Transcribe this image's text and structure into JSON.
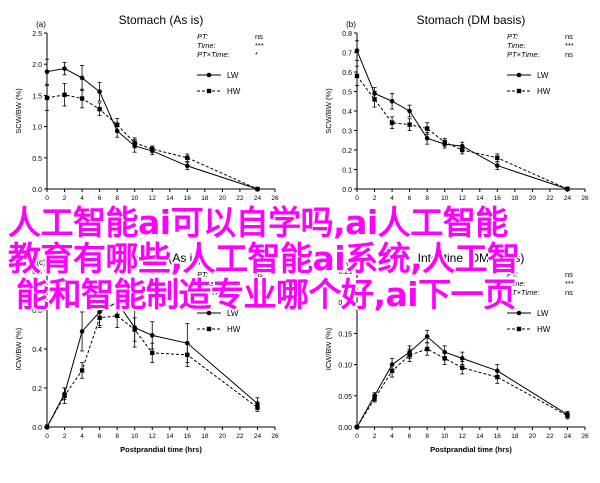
{
  "overlay": {
    "lines": [
      "人工智能ai可以自学吗,ai人工智能",
      "教育有哪些,人工智能ai系统,人工智",
      "能和智能制造专业哪个好,ai下一页"
    ],
    "color": "#ff00ff"
  },
  "chart_data": [
    {
      "type": "line",
      "title": "Stomach (As is)",
      "panel_label": "(a)",
      "xlabel": "",
      "ylabel": "SCW/BW (%)",
      "xlim": [
        0,
        26
      ],
      "ylim": [
        0,
        2.5
      ],
      "yticks": [
        "0.0",
        "0.5",
        "1.0",
        "1.5",
        "2.0",
        "2.5"
      ],
      "xticks": [
        "0",
        "2",
        "4",
        "6",
        "8",
        "10",
        "12",
        "14",
        "16",
        "18",
        "20",
        "22",
        "24",
        "26"
      ],
      "stats": [
        {
          "label": "PT:",
          "value": "ns"
        },
        {
          "label": "Time:",
          "value": "***"
        },
        {
          "label": "PT×Time:",
          "value": "*"
        }
      ],
      "series": [
        {
          "name": "LW",
          "x": [
            0,
            2,
            4,
            6,
            8,
            10,
            12,
            16,
            24
          ],
          "y": [
            1.88,
            1.93,
            1.78,
            1.56,
            0.93,
            0.69,
            0.61,
            0.37,
            0.0
          ],
          "err": [
            0.2,
            0.1,
            0.2,
            0.15,
            0.1,
            0.1,
            0.06,
            0.06,
            0.02
          ]
        },
        {
          "name": "HW",
          "x": [
            0,
            2,
            4,
            6,
            8,
            10,
            12,
            16,
            24
          ],
          "y": [
            1.46,
            1.51,
            1.45,
            1.28,
            1.03,
            0.74,
            0.64,
            0.5,
            0.0
          ],
          "err": [
            0.2,
            0.18,
            0.15,
            0.1,
            0.1,
            0.08,
            0.05,
            0.06,
            0.02
          ]
        }
      ]
    },
    {
      "type": "line",
      "title": "Stomach (DM basis)",
      "panel_label": "(b)",
      "xlabel": "",
      "ylabel": "SCW/BW (%)",
      "xlim": [
        0,
        26
      ],
      "ylim": [
        0,
        0.8
      ],
      "yticks": [
        "0.0",
        "0.1",
        "0.2",
        "0.3",
        "0.4",
        "0.5",
        "0.6",
        "0.7",
        "0.8"
      ],
      "xticks": [
        "0",
        "2",
        "4",
        "6",
        "8",
        "10",
        "12",
        "14",
        "16",
        "18",
        "20",
        "22",
        "24",
        "26"
      ],
      "stats": [
        {
          "label": "PT:",
          "value": "ns"
        },
        {
          "label": "Time:",
          "value": "***"
        },
        {
          "label": "PT×Time:",
          "value": "ns"
        }
      ],
      "series": [
        {
          "name": "LW",
          "x": [
            0,
            2,
            4,
            6,
            8,
            10,
            12,
            16,
            24
          ],
          "y": [
            0.71,
            0.49,
            0.45,
            0.4,
            0.26,
            0.23,
            0.22,
            0.12,
            0.0
          ],
          "err": [
            0.05,
            0.03,
            0.04,
            0.03,
            0.03,
            0.02,
            0.02,
            0.02,
            0.01
          ]
        },
        {
          "name": "HW",
          "x": [
            0,
            2,
            4,
            6,
            8,
            10,
            12,
            16,
            24
          ],
          "y": [
            0.58,
            0.46,
            0.34,
            0.33,
            0.31,
            0.24,
            0.2,
            0.16,
            0.0
          ],
          "err": [
            0.05,
            0.04,
            0.03,
            0.03,
            0.03,
            0.02,
            0.02,
            0.02,
            0.01
          ]
        }
      ]
    },
    {
      "type": "line",
      "title": "Intestine (As is)",
      "panel_label": "(c)",
      "xlabel": "Postprandial time (hrs)",
      "ylabel": "ICW/BW (%)",
      "xlim": [
        0,
        26
      ],
      "ylim": [
        0,
        0.8
      ],
      "yticks": [
        "0.0",
        "0.2",
        "0.4",
        "0.6",
        "0.8"
      ],
      "xticks": [
        "0",
        "2",
        "4",
        "6",
        "8",
        "10",
        "12",
        "14",
        "16",
        "18",
        "20",
        "22",
        "24",
        "26"
      ],
      "stats": [
        {
          "label": "PT:",
          "value": "ns"
        },
        {
          "label": "Time:",
          "value": "***"
        },
        {
          "label": "PT×Time:",
          "value": "ns"
        }
      ],
      "series": [
        {
          "name": "LW",
          "x": [
            0,
            2,
            4,
            6,
            8,
            10,
            12,
            16,
            24
          ],
          "y": [
            0.0,
            0.17,
            0.49,
            0.59,
            0.64,
            0.51,
            0.47,
            0.43,
            0.12
          ],
          "err": [
            0.01,
            0.03,
            0.1,
            0.07,
            0.04,
            0.1,
            0.07,
            0.1,
            0.03
          ]
        },
        {
          "name": "HW",
          "x": [
            0,
            2,
            4,
            6,
            8,
            10,
            12,
            16,
            24
          ],
          "y": [
            0.0,
            0.16,
            0.29,
            0.56,
            0.57,
            0.5,
            0.38,
            0.37,
            0.1
          ],
          "err": [
            0.01,
            0.04,
            0.04,
            0.05,
            0.06,
            0.06,
            0.05,
            0.06,
            0.02
          ]
        }
      ]
    },
    {
      "type": "line",
      "title": "Intestine (DM basis)",
      "panel_label": "(d)",
      "xlabel": "Postprandial time (hrs)",
      "ylabel": "ICW/BW (%)",
      "xlim": [
        0,
        26
      ],
      "ylim": [
        0,
        0.25
      ],
      "yticks": [
        "0.00",
        "0.05",
        "0.10",
        "0.15",
        "0.20",
        "0.25"
      ],
      "xticks": [
        "0",
        "2",
        "4",
        "6",
        "8",
        "10",
        "12",
        "14",
        "16",
        "18",
        "20",
        "22",
        "24",
        "26"
      ],
      "stats": [
        {
          "label": "PT:",
          "value": "ns"
        },
        {
          "label": "Time:",
          "value": "***"
        },
        {
          "label": "PT×Time:",
          "value": "ns"
        }
      ],
      "series": [
        {
          "name": "LW",
          "x": [
            0,
            2,
            4,
            6,
            8,
            10,
            12,
            16,
            24
          ],
          "y": [
            0.0,
            0.05,
            0.1,
            0.12,
            0.145,
            0.12,
            0.11,
            0.09,
            0.02
          ],
          "err": [
            0.002,
            0.005,
            0.01,
            0.01,
            0.01,
            0.01,
            0.01,
            0.01,
            0.005
          ]
        },
        {
          "name": "HW",
          "x": [
            0,
            2,
            4,
            6,
            8,
            10,
            12,
            16,
            24
          ],
          "y": [
            0.0,
            0.045,
            0.09,
            0.115,
            0.125,
            0.11,
            0.095,
            0.08,
            0.018
          ],
          "err": [
            0.002,
            0.005,
            0.01,
            0.01,
            0.01,
            0.01,
            0.01,
            0.01,
            0.005
          ]
        }
      ]
    }
  ]
}
